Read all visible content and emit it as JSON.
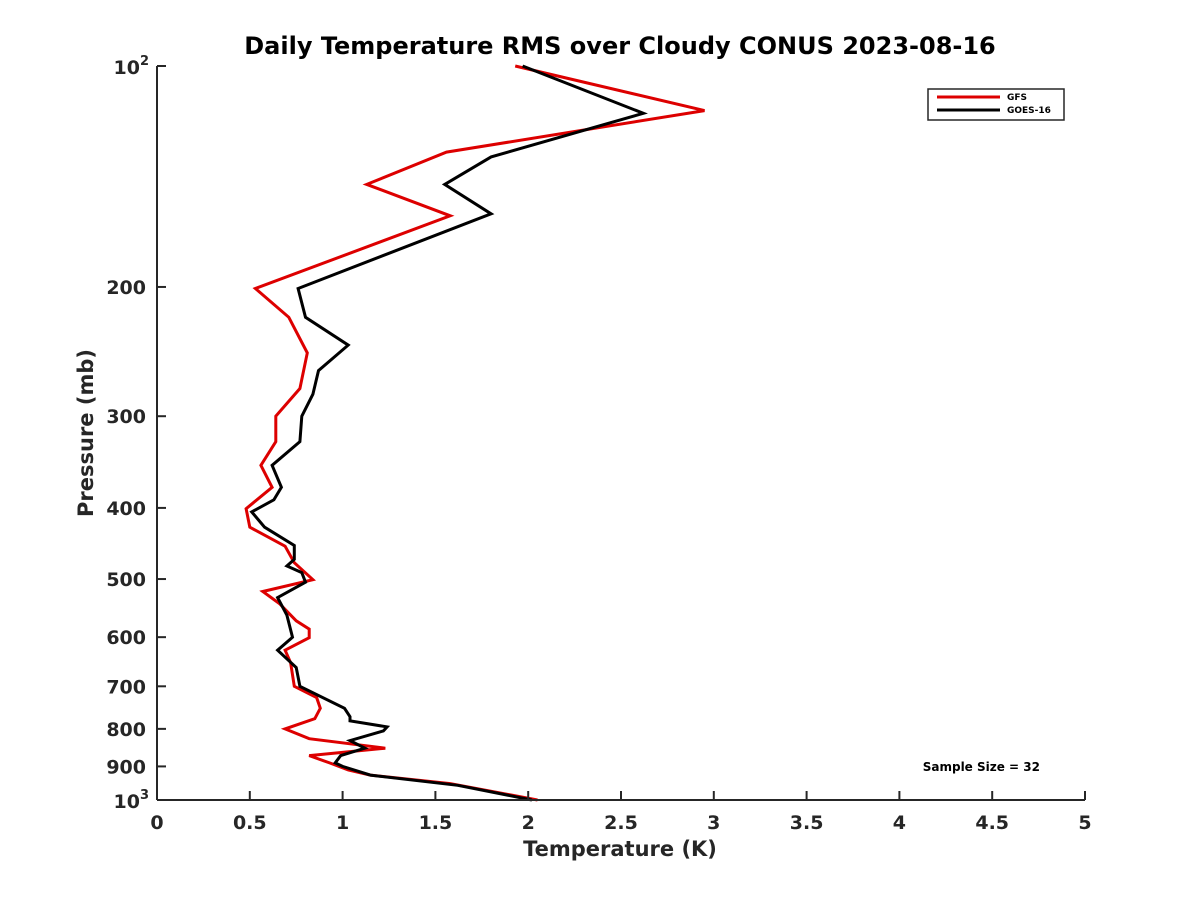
{
  "chart_data": {
    "type": "line",
    "title": "Daily Temperature RMS over Cloudy CONUS 2023-08-16",
    "xlabel": "Temperature (K)",
    "ylabel": "Pressure (mb)",
    "xlim": [
      0,
      5
    ],
    "ylim": [
      100,
      1000
    ],
    "y_scale": "log",
    "y_reversed": true,
    "grid": false,
    "legend_position": "top-right",
    "x_ticks": [
      0,
      0.5,
      1,
      1.5,
      2,
      2.5,
      3,
      3.5,
      4,
      4.5,
      5
    ],
    "x_tick_labels": [
      "0",
      "0.5",
      "1",
      "1.5",
      "2",
      "2.5",
      "3",
      "3.5",
      "4",
      "4.5",
      "5"
    ],
    "y_ticks": [
      {
        "value": 100,
        "base": "10",
        "exp": "2"
      },
      {
        "value": 200,
        "label": "200"
      },
      {
        "value": 300,
        "label": "300"
      },
      {
        "value": 400,
        "label": "400"
      },
      {
        "value": 500,
        "label": "500"
      },
      {
        "value": 600,
        "label": "600"
      },
      {
        "value": 700,
        "label": "700"
      },
      {
        "value": 800,
        "label": "800"
      },
      {
        "value": 900,
        "label": "900"
      },
      {
        "value": 1000,
        "base": "10",
        "exp": "3"
      }
    ],
    "series": [
      {
        "name": "GFS",
        "color": "#dd0000",
        "points": [
          [
            1.93,
            100
          ],
          [
            2.95,
            115
          ],
          [
            1.56,
            131
          ],
          [
            1.13,
            145
          ],
          [
            1.58,
            160
          ],
          [
            0.53,
            201
          ],
          [
            0.71,
            220
          ],
          [
            0.81,
            246
          ],
          [
            0.77,
            275
          ],
          [
            0.64,
            300
          ],
          [
            0.64,
            325
          ],
          [
            0.56,
            350
          ],
          [
            0.62,
            375
          ],
          [
            0.48,
            401
          ],
          [
            0.5,
            425
          ],
          [
            0.69,
            451
          ],
          [
            0.74,
            475
          ],
          [
            0.84,
            501
          ],
          [
            0.57,
            520
          ],
          [
            0.66,
            540
          ],
          [
            0.75,
            570
          ],
          [
            0.82,
            585
          ],
          [
            0.82,
            601
          ],
          [
            0.69,
            625
          ],
          [
            0.72,
            650
          ],
          [
            0.74,
            700
          ],
          [
            0.86,
            725
          ],
          [
            0.88,
            750
          ],
          [
            0.85,
            775
          ],
          [
            0.69,
            800
          ],
          [
            0.82,
            825
          ],
          [
            1.23,
            850
          ],
          [
            0.82,
            870
          ],
          [
            0.93,
            890
          ],
          [
            1.03,
            910
          ],
          [
            1.15,
            925
          ],
          [
            1.58,
            950
          ],
          [
            2.05,
            1000
          ]
        ]
      },
      {
        "name": "GOES-16",
        "color": "#000000",
        "points": [
          [
            1.97,
            100
          ],
          [
            2.62,
            116
          ],
          [
            1.8,
            133
          ],
          [
            1.55,
            145
          ],
          [
            1.8,
            159
          ],
          [
            0.76,
            201
          ],
          [
            0.8,
            220
          ],
          [
            1.03,
            240
          ],
          [
            0.87,
            260
          ],
          [
            0.84,
            280
          ],
          [
            0.78,
            300
          ],
          [
            0.77,
            325
          ],
          [
            0.62,
            350
          ],
          [
            0.67,
            375
          ],
          [
            0.63,
            390
          ],
          [
            0.51,
            405
          ],
          [
            0.58,
            425
          ],
          [
            0.74,
            450
          ],
          [
            0.74,
            470
          ],
          [
            0.7,
            480
          ],
          [
            0.78,
            490
          ],
          [
            0.8,
            505
          ],
          [
            0.65,
            530
          ],
          [
            0.7,
            560
          ],
          [
            0.73,
            600
          ],
          [
            0.65,
            625
          ],
          [
            0.75,
            660
          ],
          [
            0.76,
            680
          ],
          [
            0.77,
            700
          ],
          [
            1.01,
            750
          ],
          [
            1.04,
            770
          ],
          [
            1.04,
            780
          ],
          [
            1.24,
            795
          ],
          [
            1.22,
            805
          ],
          [
            1.04,
            830
          ],
          [
            1.12,
            850
          ],
          [
            0.99,
            870
          ],
          [
            0.96,
            890
          ],
          [
            1.0,
            900
          ],
          [
            1.15,
            925
          ],
          [
            1.62,
            955
          ],
          [
            2.02,
            1000
          ]
        ]
      }
    ],
    "annotations": [
      "Sample Size = 32"
    ]
  }
}
